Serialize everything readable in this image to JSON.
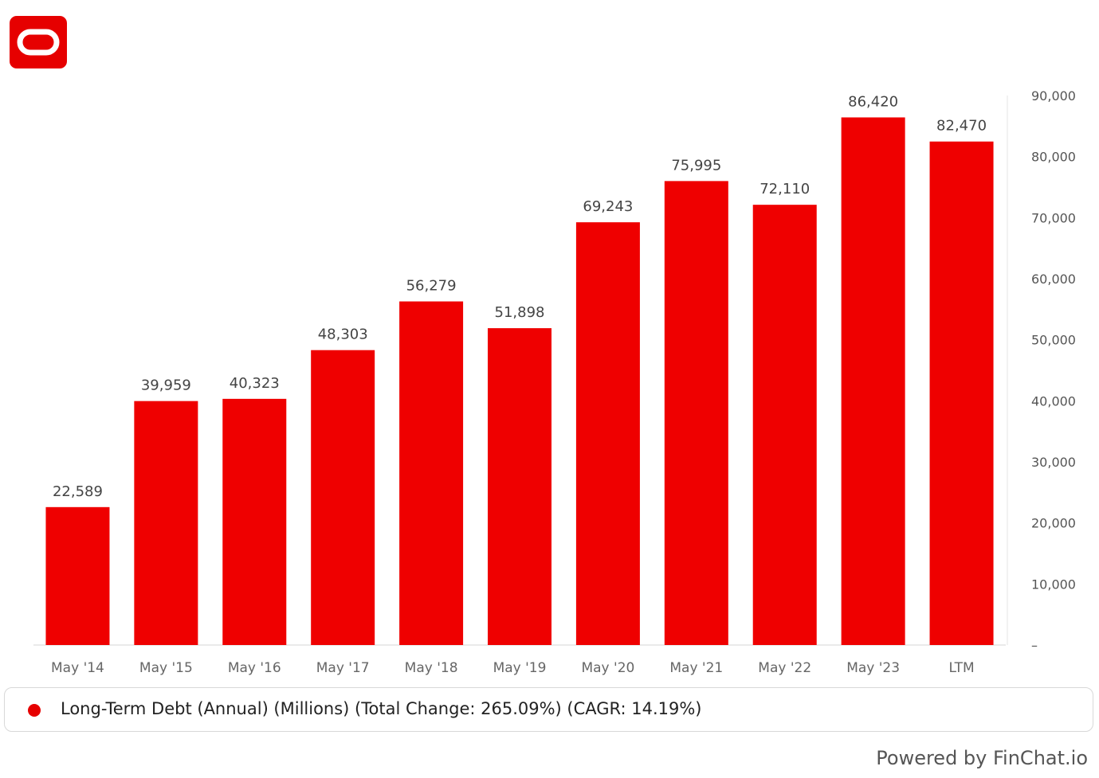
{
  "brand": {
    "logo_icon": "oracle-logo-icon",
    "accent": "#e60000"
  },
  "chart_data": {
    "type": "bar",
    "categories": [
      "May '14",
      "May '15",
      "May '16",
      "May '17",
      "May '18",
      "May '19",
      "May '20",
      "May '21",
      "May '22",
      "May '23",
      "LTM"
    ],
    "series": [
      {
        "name": "Long-Term Debt (Annual) (Millions) (Total Change: 265.09%) (CAGR: 14.19%)",
        "color": "#ef0000",
        "values": [
          22589,
          39959,
          40323,
          48303,
          56279,
          51898,
          69243,
          75995,
          72110,
          86420,
          82470
        ],
        "labels": [
          "22,589",
          "39,959",
          "40,323",
          "48,303",
          "56,279",
          "51,898",
          "69,243",
          "75,995",
          "72,110",
          "86,420",
          "82,470"
        ]
      }
    ],
    "ylim": [
      0,
      90000
    ],
    "y_ticks": [
      0,
      10000,
      20000,
      30000,
      40000,
      50000,
      60000,
      70000,
      80000,
      90000
    ],
    "y_tick_labels": [
      "–",
      "10,000",
      "20,000",
      "30,000",
      "40,000",
      "50,000",
      "60,000",
      "70,000",
      "80,000",
      "90,000"
    ],
    "y_axis_side": "right",
    "grid": false,
    "legend_position": "bottom"
  },
  "footer": {
    "text": "Powered by FinChat.io"
  }
}
